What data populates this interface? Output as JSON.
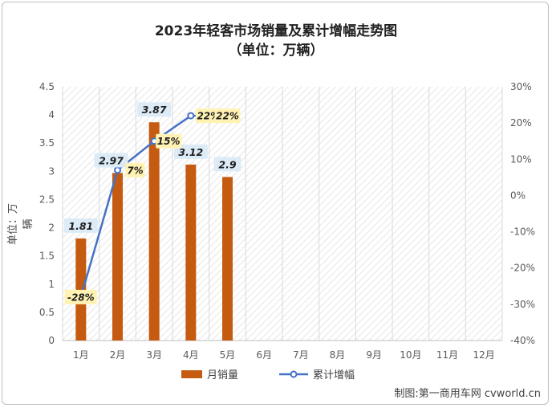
{
  "chart_data": {
    "type": "bar+line",
    "title": "2023年轻客市场销量及累计增幅走势图",
    "subtitle": "（单位：万辆）",
    "ylabel": "单位：万辆",
    "categories": [
      "1月",
      "2月",
      "3月",
      "4月",
      "5月",
      "6月",
      "7月",
      "8月",
      "9月",
      "10月",
      "11月",
      "12月"
    ],
    "y_left": {
      "min": 0,
      "max": 4.5,
      "ticks": [
        "0",
        "0.5",
        "1",
        "1.5",
        "2",
        "2.5",
        "3",
        "3.5",
        "4",
        "4.5"
      ]
    },
    "y_right": {
      "min": -40,
      "max": 30,
      "ticks": [
        "-40%",
        "-30%",
        "-20%",
        "-10%",
        "0%",
        "10%",
        "20%",
        "30%"
      ]
    },
    "series": [
      {
        "name": "月销量",
        "type": "bar",
        "axis": "left",
        "values": [
          1.81,
          2.97,
          3.87,
          3.12,
          2.9,
          null,
          null,
          null,
          null,
          null,
          null,
          null
        ],
        "labels": [
          "1.81",
          "2.97",
          "3.87",
          "3.12",
          "2.9"
        ]
      },
      {
        "name": "累计增幅",
        "type": "line",
        "axis": "right",
        "values": [
          -28,
          7,
          15,
          22,
          22,
          null,
          null,
          null,
          null,
          null,
          null,
          null
        ],
        "labels": [
          "-28%",
          "7%",
          "15%",
          "22%",
          "22%"
        ]
      }
    ],
    "legend_position": "bottom",
    "colors": {
      "bar": "#c55a11",
      "line": "#4472c4",
      "bar_label_bg": "#ddebf7",
      "line_label_bg": "#fff2b3"
    },
    "grid": true
  },
  "credit": "制图:第一商用车网 cvworld.cn"
}
